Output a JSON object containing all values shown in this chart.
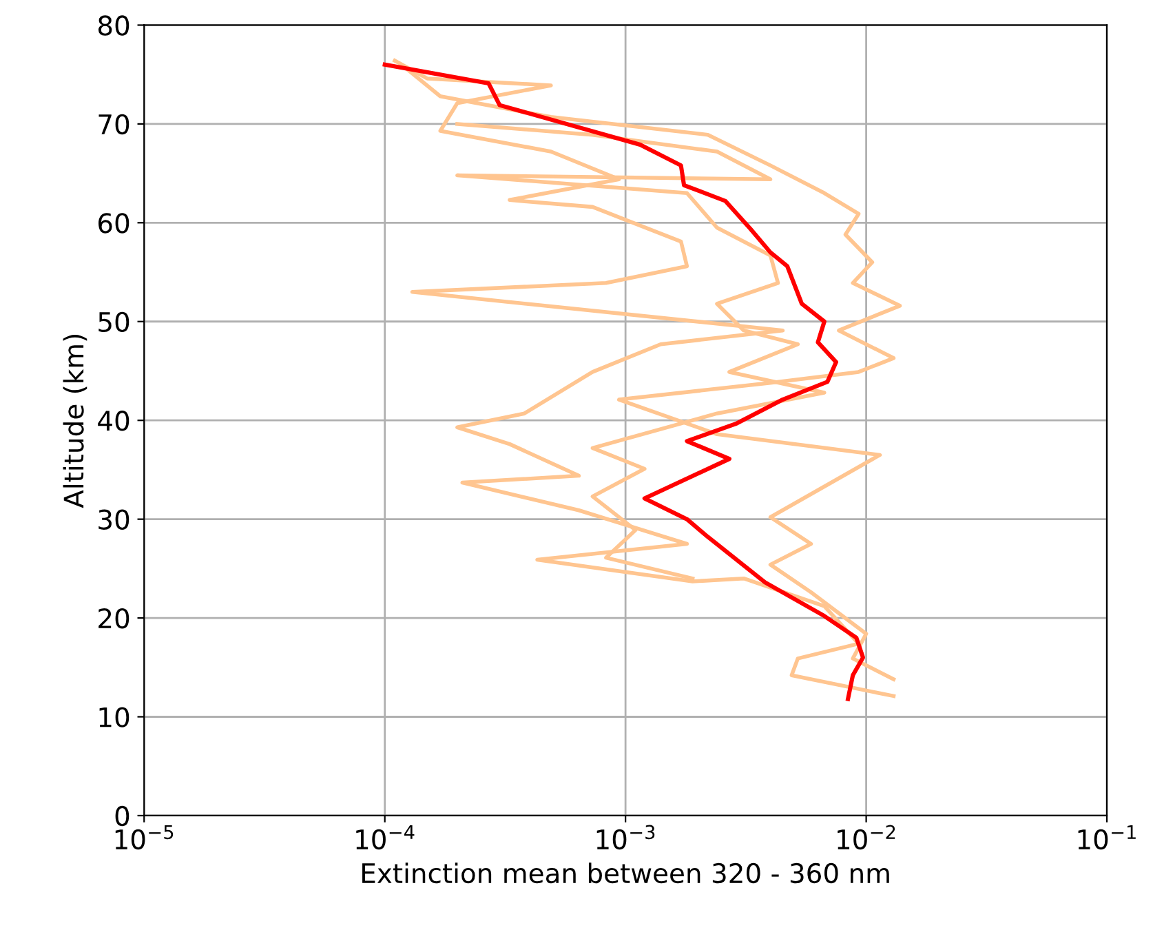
{
  "chart_data": {
    "type": "line",
    "xlabel": "Extinction mean between 320 - 360 nm",
    "ylabel": "Altitude (km)",
    "log": "x",
    "grid": true,
    "marker": "none",
    "line_style": "solid",
    "xlim": [
      1e-05,
      0.1
    ],
    "ylim": [
      0,
      80
    ],
    "xticks": [
      {
        "value": 1e-05,
        "label": "10$^{−5}$"
      },
      {
        "value": 0.0001,
        "label": "10$^{−4}$"
      },
      {
        "value": 0.001,
        "label": "10$^{−3}$"
      },
      {
        "value": 0.01,
        "label": "10$^{−2}$"
      },
      {
        "value": 0.1,
        "label": "10$^{−1}$"
      }
    ],
    "yticks": [
      0,
      10,
      20,
      30,
      40,
      50,
      60,
      70,
      80
    ],
    "series": [
      {
        "color": "#ffc590",
        "x": [
          0.013,
          0.0049,
          0.0052,
          0.0093,
          0.0067,
          0.0031,
          0.0019,
          0.00043,
          0.0018,
          0.00064,
          0.00021,
          0.00064,
          0.00033,
          0.0002,
          0.00038,
          0.00073,
          0.0014,
          0.0045,
          0.00013,
          0.00083,
          0.0018,
          0.0017,
          0.00073,
          0.00033,
          0.00094,
          0.00049,
          0.00017,
          0.0002,
          0.00049,
          0.00015,
          0.00011
        ],
        "values": [
          12.1,
          14.2,
          15.9,
          17.4,
          21.2,
          24.0,
          23.7,
          25.9,
          27.5,
          30.9,
          33.7,
          34.4,
          37.6,
          39.3,
          40.7,
          44.9,
          47.7,
          49.1,
          53.0,
          53.9,
          55.6,
          58.1,
          61.6,
          62.3,
          64.4,
          67.2,
          69.3,
          72.1,
          73.9,
          74.6,
          76.4
        ]
      },
      {
        "color": "#ffc590",
        "x": [
          0.013,
          0.0088,
          0.01,
          0.0059,
          0.004,
          0.0059,
          0.004,
          0.0114,
          0.0024,
          0.00094,
          0.004,
          0.0093,
          0.013,
          0.0077,
          0.0138,
          0.0088,
          0.0106,
          0.0082,
          0.0093,
          0.0067,
          0.004,
          0.0022,
          0.00049,
          0.00017,
          0.00012
        ],
        "values": [
          13.8,
          15.9,
          18.4,
          22.6,
          25.4,
          27.5,
          30.2,
          36.5,
          38.6,
          42.1,
          43.8,
          44.9,
          46.3,
          49.1,
          51.6,
          53.9,
          56.0,
          58.8,
          60.9,
          63.0,
          65.8,
          68.9,
          70.7,
          72.8,
          75.8
        ]
      },
      {
        "color": "#ffc590",
        "x": [
          0.0019,
          0.00083,
          0.0011,
          0.00073,
          0.0012,
          0.00073,
          0.0024,
          0.0067,
          0.0027,
          0.0052,
          0.0031,
          0.0024,
          0.0043,
          0.004,
          0.0024,
          0.0018,
          0.0002,
          0.004,
          0.0024,
          0.00073,
          0.0002
        ],
        "values": [
          24.0,
          26.1,
          28.9,
          32.3,
          35.1,
          37.2,
          40.7,
          42.8,
          44.9,
          47.7,
          49.1,
          51.8,
          53.9,
          56.7,
          59.5,
          63.0,
          64.8,
          64.4,
          67.2,
          68.9,
          70.0
        ]
      },
      {
        "color": "#ff0000",
        "x": [
          0.0001,
          0.00027,
          0.0003,
          0.00115,
          0.0017,
          0.00175,
          0.0026,
          0.0033,
          0.004,
          0.0047,
          0.0054,
          0.0067,
          0.0063,
          0.0075,
          0.0069,
          0.0045,
          0.0029,
          0.0018,
          0.0027,
          0.0012,
          0.0018,
          0.0022,
          0.0038,
          0.0067,
          0.0091,
          0.0097,
          0.0088,
          0.0084
        ],
        "values": [
          76.0,
          74.1,
          71.9,
          67.9,
          65.8,
          63.8,
          62.2,
          59.4,
          57.0,
          55.6,
          51.8,
          50.0,
          47.9,
          45.9,
          43.9,
          42.1,
          39.7,
          37.9,
          36.1,
          32.1,
          30.0,
          28.2,
          23.6,
          20.2,
          18.0,
          16.0,
          14.2,
          11.8
        ]
      }
    ]
  }
}
